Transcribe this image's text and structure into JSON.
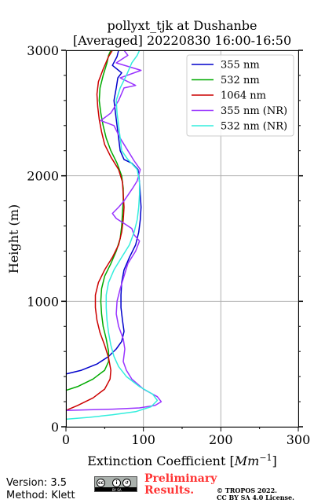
{
  "chart_data": {
    "type": "line",
    "title": "pollyxt_tjk at Dushanbe",
    "subtitle": "[Averaged] 20220830 16:00-16:50",
    "xlabel": "Extinction Coefficient [",
    "xlabel_unit": "Mm",
    "xlabel_exp": "−1",
    "xlabel_close": "]",
    "ylabel": "Height (m)",
    "xlim": [
      0,
      300
    ],
    "ylim": [
      0,
      3000
    ],
    "xticks": [
      "0",
      "100",
      "200",
      "300"
    ],
    "yticks": [
      "0",
      "1000",
      "2000",
      "3000"
    ],
    "grid": true,
    "legend_position": "top-right",
    "series": [
      {
        "name": "355 nm",
        "color": "#0000cc",
        "points": [
          [
            0,
            420
          ],
          [
            20,
            450
          ],
          [
            40,
            500
          ],
          [
            55,
            560
          ],
          [
            65,
            620
          ],
          [
            72,
            680
          ],
          [
            75,
            760
          ],
          [
            73,
            850
          ],
          [
            71,
            950
          ],
          [
            71,
            1050
          ],
          [
            72,
            1150
          ],
          [
            75,
            1250
          ],
          [
            82,
            1350
          ],
          [
            90,
            1450
          ],
          [
            94,
            1550
          ],
          [
            96,
            1650
          ],
          [
            97,
            1750
          ],
          [
            96,
            1850
          ],
          [
            95,
            1950
          ],
          [
            93,
            2050
          ],
          [
            85,
            2100
          ],
          [
            75,
            2130
          ],
          [
            70,
            2200
          ],
          [
            68,
            2300
          ],
          [
            66,
            2400
          ],
          [
            64,
            2500
          ],
          [
            62,
            2600
          ],
          [
            65,
            2700
          ],
          [
            67,
            2780
          ],
          [
            72,
            2820
          ],
          [
            60,
            2880
          ],
          [
            66,
            2950
          ],
          [
            68,
            3000
          ]
        ]
      },
      {
        "name": "532 nm",
        "color": "#00aa00",
        "points": [
          [
            0,
            290
          ],
          [
            15,
            320
          ],
          [
            35,
            380
          ],
          [
            50,
            450
          ],
          [
            55,
            520
          ],
          [
            55,
            600
          ],
          [
            52,
            700
          ],
          [
            48,
            800
          ],
          [
            46,
            900
          ],
          [
            45,
            1000
          ],
          [
            46,
            1100
          ],
          [
            50,
            1200
          ],
          [
            58,
            1300
          ],
          [
            65,
            1400
          ],
          [
            70,
            1500
          ],
          [
            72,
            1600
          ],
          [
            73,
            1700
          ],
          [
            74,
            1800
          ],
          [
            74,
            1900
          ],
          [
            72,
            2000
          ],
          [
            66,
            2100
          ],
          [
            58,
            2200
          ],
          [
            52,
            2300
          ],
          [
            48,
            2400
          ],
          [
            45,
            2500
          ],
          [
            43,
            2600
          ],
          [
            44,
            2700
          ],
          [
            48,
            2800
          ],
          [
            53,
            2900
          ],
          [
            55,
            2960
          ],
          [
            58,
            3000
          ]
        ]
      },
      {
        "name": "1064 nm",
        "color": "#cc0000",
        "points": [
          [
            0,
            130
          ],
          [
            15,
            170
          ],
          [
            35,
            230
          ],
          [
            50,
            300
          ],
          [
            57,
            380
          ],
          [
            58,
            450
          ],
          [
            55,
            550
          ],
          [
            50,
            650
          ],
          [
            44,
            750
          ],
          [
            40,
            850
          ],
          [
            38,
            950
          ],
          [
            38,
            1050
          ],
          [
            42,
            1150
          ],
          [
            50,
            1250
          ],
          [
            60,
            1350
          ],
          [
            68,
            1450
          ],
          [
            72,
            1550
          ],
          [
            74,
            1650
          ],
          [
            75,
            1750
          ],
          [
            74,
            1850
          ],
          [
            73,
            1950
          ],
          [
            68,
            2050
          ],
          [
            58,
            2150
          ],
          [
            50,
            2250
          ],
          [
            46,
            2350
          ],
          [
            43,
            2450
          ],
          [
            41,
            2550
          ],
          [
            40,
            2650
          ],
          [
            42,
            2750
          ],
          [
            48,
            2850
          ],
          [
            55,
            2950
          ],
          [
            60,
            3000
          ]
        ]
      },
      {
        "name": "355 nm (NR)",
        "color": "#9933ff",
        "points": [
          [
            0,
            130
          ],
          [
            30,
            135
          ],
          [
            60,
            140
          ],
          [
            95,
            150
          ],
          [
            115,
            170
          ],
          [
            123,
            200
          ],
          [
            118,
            240
          ],
          [
            100,
            300
          ],
          [
            85,
            380
          ],
          [
            78,
            450
          ],
          [
            74,
            520
          ],
          [
            76,
            620
          ],
          [
            74,
            700
          ],
          [
            68,
            800
          ],
          [
            65,
            900
          ],
          [
            66,
            1000
          ],
          [
            70,
            1100
          ],
          [
            75,
            1200
          ],
          [
            80,
            1300
          ],
          [
            90,
            1400
          ],
          [
            95,
            1480
          ],
          [
            88,
            1530
          ],
          [
            85,
            1580
          ],
          [
            75,
            1620
          ],
          [
            65,
            1660
          ],
          [
            60,
            1700
          ],
          [
            68,
            1750
          ],
          [
            75,
            1800
          ],
          [
            86,
            1900
          ],
          [
            92,
            1960
          ],
          [
            96,
            2050
          ],
          [
            88,
            2120
          ],
          [
            80,
            2200
          ],
          [
            70,
            2300
          ],
          [
            62,
            2400
          ],
          [
            45,
            2440
          ],
          [
            58,
            2500
          ],
          [
            68,
            2600
          ],
          [
            75,
            2700
          ],
          [
            90,
            2720
          ],
          [
            70,
            2780
          ],
          [
            97,
            2840
          ],
          [
            65,
            2900
          ],
          [
            80,
            2960
          ],
          [
            75,
            3000
          ]
        ]
      },
      {
        "name": "532 nm (NR)",
        "color": "#33eedd",
        "points": [
          [
            0,
            60
          ],
          [
            30,
            75
          ],
          [
            60,
            95
          ],
          [
            90,
            120
          ],
          [
            110,
            160
          ],
          [
            118,
            210
          ],
          [
            112,
            260
          ],
          [
            95,
            320
          ],
          [
            78,
            400
          ],
          [
            68,
            480
          ],
          [
            62,
            560
          ],
          [
            58,
            650
          ],
          [
            55,
            750
          ],
          [
            53,
            850
          ],
          [
            52,
            950
          ],
          [
            52,
            1050
          ],
          [
            55,
            1150
          ],
          [
            62,
            1250
          ],
          [
            72,
            1350
          ],
          [
            82,
            1450
          ],
          [
            88,
            1550
          ],
          [
            92,
            1650
          ],
          [
            94,
            1750
          ],
          [
            95,
            1850
          ],
          [
            95,
            1950
          ],
          [
            92,
            2050
          ],
          [
            80,
            2130
          ],
          [
            72,
            2200
          ],
          [
            70,
            2300
          ],
          [
            68,
            2400
          ],
          [
            66,
            2500
          ],
          [
            65,
            2600
          ],
          [
            70,
            2700
          ],
          [
            78,
            2800
          ],
          [
            85,
            2900
          ],
          [
            92,
            2960
          ],
          [
            95,
            3000
          ]
        ]
      }
    ]
  },
  "footer": {
    "version": "Version: 3.5",
    "method": "Method: Klett",
    "license_badge": "BY  SA",
    "prelim_line1": "Preliminary",
    "prelim_line2": "Results.",
    "copyright_line1": "© TROPOS 2022.",
    "copyright_line2": "CC BY SA 4.0 License."
  }
}
